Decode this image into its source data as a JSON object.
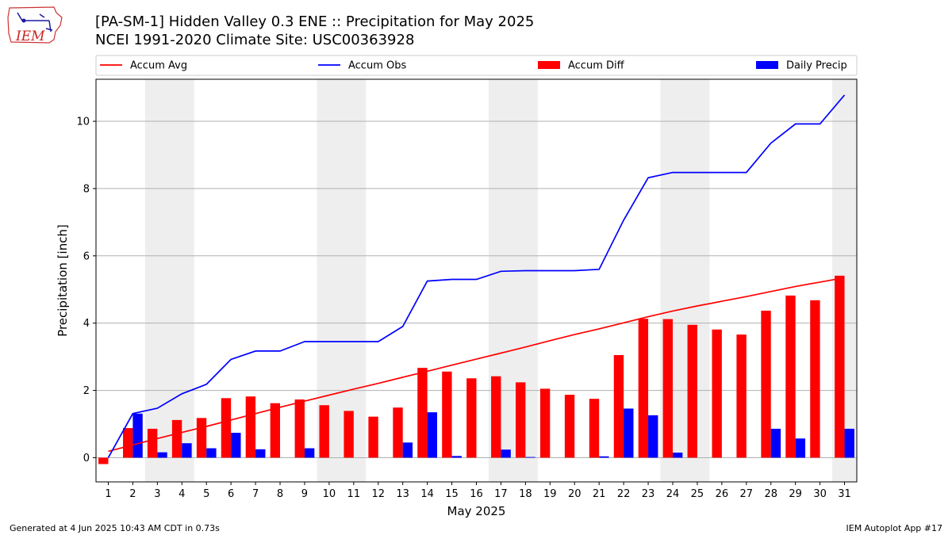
{
  "header": {
    "title_line1": "[PA-SM-1] Hidden Valley 0.3 ENE :: Precipitation for May 2025",
    "title_line2": "NCEI 1991-2020 Climate Site: USC00363928",
    "logo_text": "IEM"
  },
  "footer": {
    "generated": "Generated at 4 Jun 2025 10:43 AM CDT in 0.73s",
    "app": "IEM Autoplot App #17"
  },
  "colors": {
    "accum_avg": "#ff0000",
    "accum_obs": "#0000ff",
    "accum_diff": "#ff0000",
    "daily_precip": "#0000ff",
    "weekend_shade": "#eeeeee",
    "grid": "#b0b0b0"
  },
  "chart_data": {
    "type": "bar",
    "xlabel": "May 2025",
    "ylabel": "Precipitation [inch]",
    "ylim": [
      -0.72,
      11.25
    ],
    "yticks": [
      0,
      2,
      4,
      6,
      8,
      10
    ],
    "grid": "horizontal",
    "legend": "top",
    "categories": [
      "1",
      "2",
      "3",
      "4",
      "5",
      "6",
      "7",
      "8",
      "9",
      "10",
      "11",
      "12",
      "13",
      "14",
      "15",
      "16",
      "17",
      "18",
      "19",
      "20",
      "21",
      "22",
      "23",
      "24",
      "25",
      "26",
      "27",
      "28",
      "29",
      "30",
      "31"
    ],
    "shaded_day_ranges": [
      [
        3,
        4
      ],
      [
        10,
        11
      ],
      [
        17,
        18
      ],
      [
        24,
        25
      ],
      [
        31,
        31
      ]
    ],
    "series": [
      {
        "name": "Accum Avg",
        "kind": "line",
        "values": [
          0.19,
          0.38,
          0.57,
          0.75,
          0.93,
          1.12,
          1.31,
          1.5,
          1.68,
          1.86,
          2.04,
          2.21,
          2.39,
          2.57,
          2.75,
          2.93,
          3.11,
          3.29,
          3.48,
          3.66,
          3.83,
          4.01,
          4.19,
          4.36,
          4.51,
          4.65,
          4.79,
          4.94,
          5.09,
          5.22,
          5.35
        ]
      },
      {
        "name": "Accum Obs",
        "kind": "line",
        "values": [
          0.0,
          1.31,
          1.47,
          1.9,
          2.18,
          2.92,
          3.17,
          3.17,
          3.45,
          3.45,
          3.45,
          3.45,
          3.9,
          5.25,
          5.3,
          5.3,
          5.54,
          5.56,
          5.56,
          5.56,
          5.6,
          7.06,
          8.32,
          8.48,
          8.48,
          8.48,
          8.48,
          9.35,
          9.92,
          9.92,
          10.78
        ]
      },
      {
        "name": "Accum Diff",
        "kind": "bar",
        "values": [
          -0.19,
          0.88,
          0.86,
          1.12,
          1.18,
          1.77,
          1.82,
          1.62,
          1.73,
          1.56,
          1.39,
          1.22,
          1.49,
          2.67,
          2.56,
          2.36,
          2.42,
          2.24,
          2.05,
          1.87,
          1.75,
          3.05,
          4.13,
          4.12,
          3.95,
          3.81,
          3.66,
          4.37,
          4.82,
          4.68,
          5.41
        ]
      },
      {
        "name": "Daily Precip",
        "kind": "bar",
        "values": [
          0.0,
          1.31,
          0.16,
          0.43,
          0.28,
          0.74,
          0.25,
          0.0,
          0.28,
          0.0,
          0.0,
          0.0,
          0.45,
          1.35,
          0.05,
          0.0,
          0.24,
          0.02,
          0.0,
          0.0,
          0.04,
          1.46,
          1.26,
          0.15,
          0.0,
          0.0,
          0.0,
          0.86,
          0.57,
          0.0,
          0.86
        ]
      }
    ]
  }
}
